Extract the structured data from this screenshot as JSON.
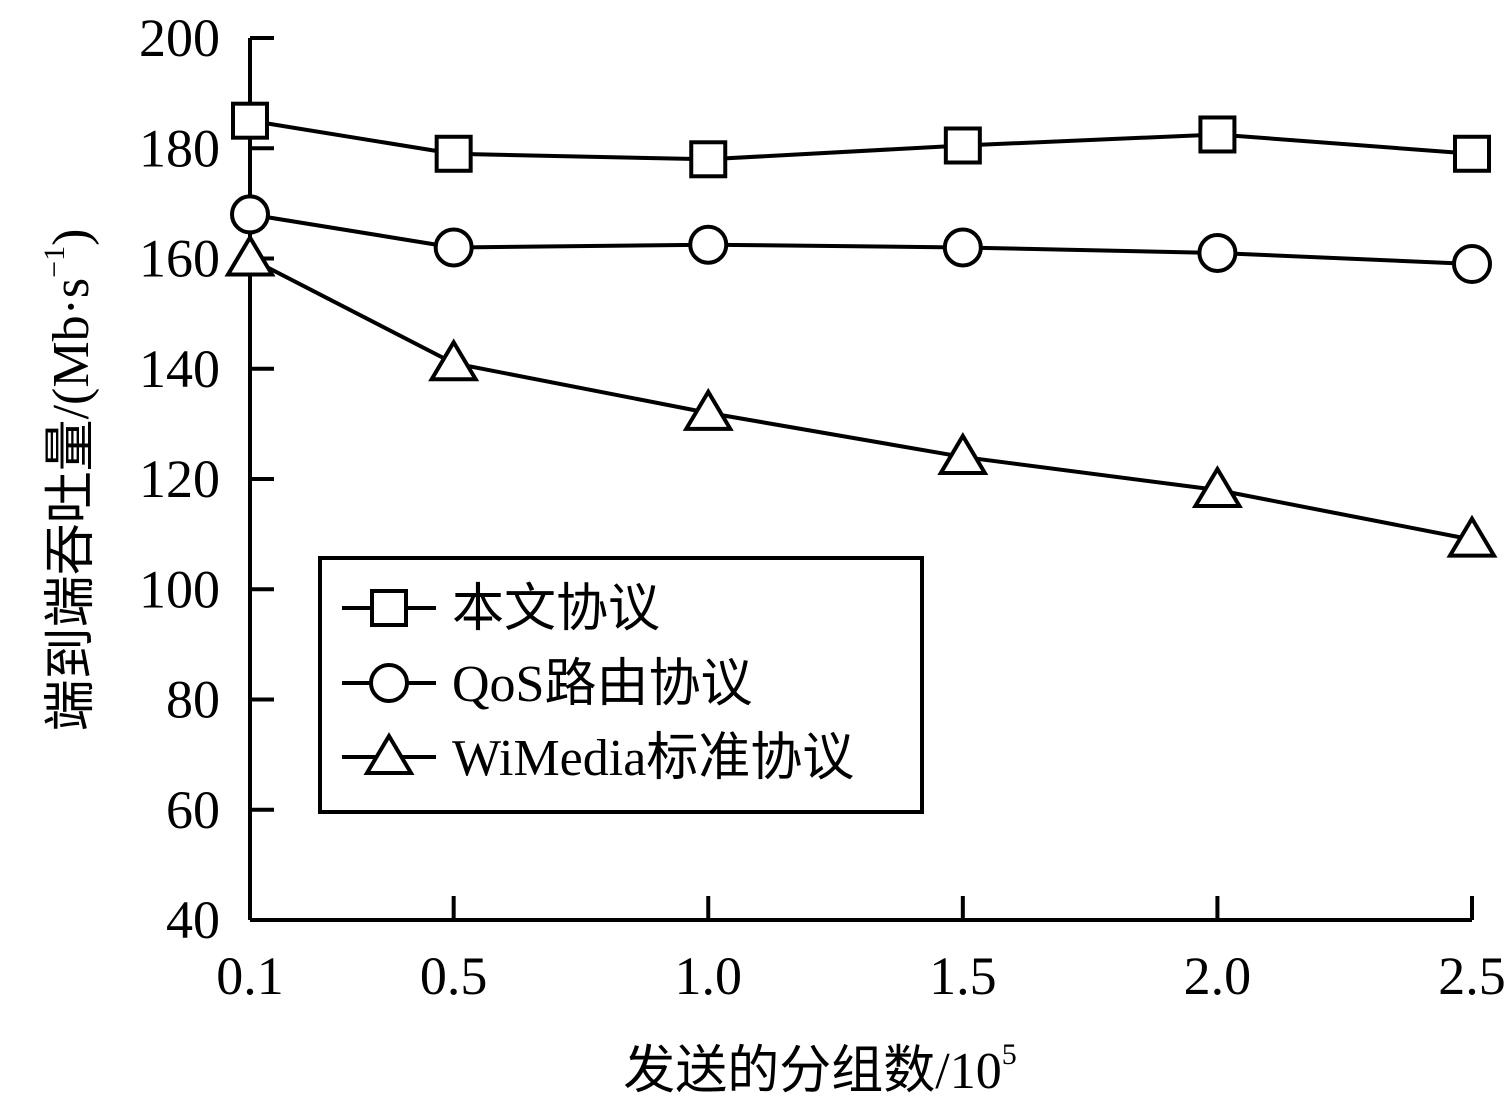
{
  "chart_data": {
    "type": "line",
    "title": "",
    "xlabel": "发送的分组数/10",
    "xlabel_exp": "5",
    "ylabel": "端到端吞吐量/(Mb·s",
    "ylabel_exp": "−1",
    "ylabel_close": ")",
    "x": [
      0.1,
      0.5,
      1.0,
      1.5,
      2.0,
      2.5
    ],
    "x_tick_labels": [
      "0.1",
      "0.5",
      "1.0",
      "1.5",
      "2.0",
      "2.5"
    ],
    "xlim": [
      0.1,
      2.5
    ],
    "ylim": [
      40,
      200
    ],
    "y_ticks": [
      40,
      60,
      80,
      100,
      120,
      140,
      160,
      180,
      200
    ],
    "grid": false,
    "legend_position": "lower-left",
    "series": [
      {
        "name": "本文协议",
        "marker": "square",
        "color": "#000000",
        "values": [
          185,
          179,
          178,
          180.5,
          182.5,
          179
        ]
      },
      {
        "name": "QoS路由协议",
        "marker": "circle",
        "color": "#000000",
        "values": [
          168,
          162,
          162.5,
          162,
          161,
          159
        ]
      },
      {
        "name": "WiMedia标准协议",
        "marker": "triangle",
        "color": "#000000",
        "values": [
          160,
          141,
          132,
          124,
          118,
          109
        ]
      }
    ]
  }
}
